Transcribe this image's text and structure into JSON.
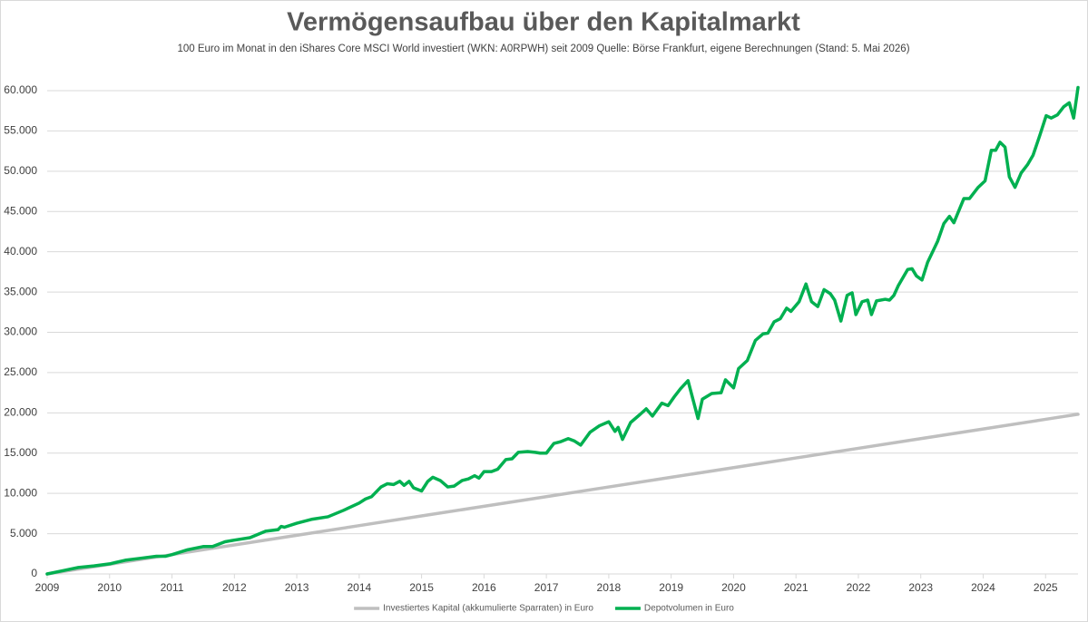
{
  "chart_data": {
    "type": "line",
    "title": "Vermögensaufbau über den Kapitalmarkt",
    "subtitle": "100 Euro im Monat in den iShares Core MSCI World investiert (WKN: A0RPWH) seit 2009 Quelle: Börse Frankfurt, eigene Berechnungen (Stand: 5. Mai 2026)",
    "xlim": [
      2009,
      2025.52
    ],
    "xticks": [
      2009,
      2010,
      2011,
      2012,
      2013,
      2014,
      2015,
      2016,
      2017,
      2018,
      2019,
      2020,
      2021,
      2022,
      2023,
      2024,
      2025
    ],
    "ylim": [
      0,
      65000
    ],
    "yticks": [
      0,
      {
        "value": 5000,
        "label": "5.000"
      },
      {
        "value": 10000,
        "label": "10.000"
      },
      {
        "value": 15000,
        "label": "15.000"
      },
      {
        "value": 20000,
        "label": "20.000"
      },
      {
        "value": 25000,
        "label": "25.000"
      },
      {
        "value": 30000,
        "label": "30.000"
      },
      {
        "value": 35000,
        "label": "35.000"
      },
      {
        "value": 40000,
        "label": "40.000"
      },
      {
        "value": 45000,
        "label": "45.000"
      },
      {
        "value": 50000,
        "label": "50.000"
      },
      {
        "value": 55000,
        "label": "55.000"
      },
      {
        "value": 60000,
        "label": "60.000"
      }
    ],
    "grid": true,
    "legend": "bottom",
    "series": [
      {
        "name": "Investiertes Kapital (akkumulierte Sparraten) in Euro",
        "color": "#bfbfbf",
        "x": [
          2009,
          2010,
          2011,
          2012,
          2013,
          2014,
          2015,
          2016,
          2017,
          2018,
          2019,
          2020,
          2021,
          2022,
          2023,
          2024,
          2025,
          2025.52
        ],
        "values": [
          0,
          1200,
          2400,
          3600,
          4800,
          6000,
          7200,
          8400,
          9600,
          10800,
          12000,
          13200,
          14400,
          15600,
          16800,
          18000,
          19200,
          19824
        ]
      },
      {
        "name": "Depotvolumen in Euro",
        "color": "#00b050",
        "x": [
          2009,
          2009.25,
          2009.5,
          2009.75,
          2010,
          2010.25,
          2010.5,
          2010.75,
          2010.9,
          2011,
          2011.25,
          2011.5,
          2011.65,
          2011.85,
          2012,
          2012.25,
          2012.5,
          2012.7,
          2012.75,
          2012.8,
          2013,
          2013.25,
          2013.5,
          2013.75,
          2014,
          2014.1,
          2014.2,
          2014.35,
          2014.45,
          2014.55,
          2014.65,
          2014.72,
          2014.8,
          2014.87,
          2015,
          2015.1,
          2015.18,
          2015.3,
          2015.42,
          2015.52,
          2015.65,
          2015.75,
          2015.85,
          2015.92,
          2016,
          2016.12,
          2016.22,
          2016.35,
          2016.45,
          2016.55,
          2016.7,
          2016.82,
          2016.9,
          2017,
          2017.12,
          2017.22,
          2017.35,
          2017.45,
          2017.55,
          2017.7,
          2017.85,
          2018,
          2018.1,
          2018.15,
          2018.22,
          2018.35,
          2018.5,
          2018.6,
          2018.7,
          2018.85,
          2018.95,
          2019.05,
          2019.15,
          2019.27,
          2019.43,
          2019.5,
          2019.65,
          2019.8,
          2019.87,
          2020,
          2020.08,
          2020.22,
          2020.35,
          2020.47,
          2020.55,
          2020.65,
          2020.75,
          2020.85,
          2020.92,
          2021.05,
          2021.16,
          2021.25,
          2021.35,
          2021.45,
          2021.55,
          2021.62,
          2021.72,
          2021.82,
          2021.9,
          2021.96,
          2022.06,
          2022.15,
          2022.21,
          2022.29,
          2022.43,
          2022.5,
          2022.57,
          2022.64,
          2022.79,
          2022.86,
          2022.93,
          2023.02,
          2023.11,
          2023.27,
          2023.37,
          2023.46,
          2023.53,
          2023.69,
          2023.78,
          2023.92,
          2024.03,
          2024.13,
          2024.2,
          2024.27,
          2024.35,
          2024.42,
          2024.51,
          2024.61,
          2024.71,
          2024.8,
          2024.91,
          2025.01,
          2025.09,
          2025.19,
          2025.29,
          2025.38,
          2025.45,
          2025.52
        ],
        "values": [
          0,
          400,
          800,
          1000,
          1250,
          1700,
          1950,
          2200,
          2200,
          2400,
          3000,
          3400,
          3400,
          4000,
          4200,
          4500,
          5300,
          5500,
          5900,
          5800,
          6300,
          6800,
          7100,
          7900,
          8800,
          9300,
          9600,
          10800,
          11200,
          11100,
          11500,
          11000,
          11500,
          10700,
          10300,
          11500,
          12000,
          11600,
          10800,
          10900,
          11600,
          11800,
          12200,
          11900,
          12700,
          12700,
          13000,
          14200,
          14300,
          15100,
          15200,
          15100,
          15000,
          15000,
          16200,
          16400,
          16800,
          16500,
          16000,
          17600,
          18400,
          18900,
          17700,
          18200,
          16700,
          18800,
          19800,
          20500,
          19600,
          21200,
          20900,
          22000,
          23000,
          24000,
          19300,
          21700,
          22400,
          22500,
          24100,
          23100,
          25500,
          26500,
          29000,
          29800,
          29900,
          31300,
          31700,
          33000,
          32600,
          33800,
          36000,
          33800,
          33200,
          35300,
          34800,
          34000,
          31400,
          34600,
          34900,
          32200,
          33800,
          34000,
          32200,
          33900,
          34100,
          34000,
          34600,
          35800,
          37800,
          37900,
          37000,
          36500,
          38700,
          41300,
          43500,
          44400,
          43600,
          46600,
          46600,
          48000,
          48800,
          52600,
          52600,
          53600,
          53000,
          49300,
          48000,
          49800,
          50800,
          52000,
          54500,
          56900,
          56600,
          57000,
          58000,
          58500,
          56600,
          60400
        ]
      }
    ]
  }
}
